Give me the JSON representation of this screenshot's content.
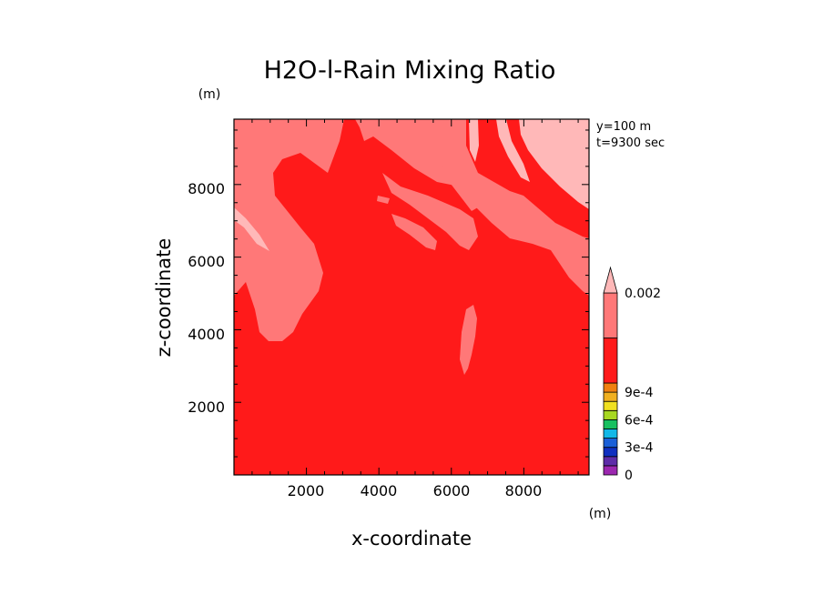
{
  "chart_data": {
    "type": "heatmap",
    "title": "H2O-l-Rain Mixing Ratio",
    "xlabel": "x-coordinate",
    "ylabel": "z-coordinate",
    "x_unit": "(m)",
    "y_unit": "(m)",
    "annotations": [
      "y=100 m",
      "t=9300 sec"
    ],
    "xlim": [
      0,
      9800
    ],
    "ylim": [
      0,
      9800
    ],
    "x_ticks": [
      2000,
      4000,
      6000,
      8000
    ],
    "y_ticks": [
      2000,
      4000,
      6000,
      8000
    ],
    "x_tick_labels": [
      "2000",
      "4000",
      "6000",
      "8000"
    ],
    "y_tick_labels": [
      "2000",
      "4000",
      "6000",
      "8000"
    ],
    "colorbar": {
      "levels": [
        0,
        0.0001,
        0.0002,
        0.0003,
        0.0004,
        0.0005,
        0.0006,
        0.0007,
        0.0008,
        0.0009,
        0.001,
        0.0015,
        0.002
      ],
      "colors": [
        "#9c27b0",
        "#5e2ca8",
        "#1030c0",
        "#1a60d8",
        "#12b8e8",
        "#18c060",
        "#a8d820",
        "#f0e020",
        "#f0b020",
        "#f08010",
        "#ff1a1a",
        "#ff7878",
        "#ffb8b8"
      ],
      "labels": [
        "0",
        "3e-4",
        "6e-4",
        "9e-4",
        "0.002"
      ],
      "label_values": [
        0,
        0.0003,
        0.0006,
        0.0009,
        0.002
      ],
      "extend": "max"
    },
    "fields": [
      {
        "level": "0.001-0.0015",
        "color": "#ff1a1a",
        "description": "background domain"
      },
      {
        "level": "0.0015-0.002",
        "color": "#ff7878"
      },
      {
        "level": ">0.002",
        "color": "#ffb8b8"
      }
    ]
  }
}
